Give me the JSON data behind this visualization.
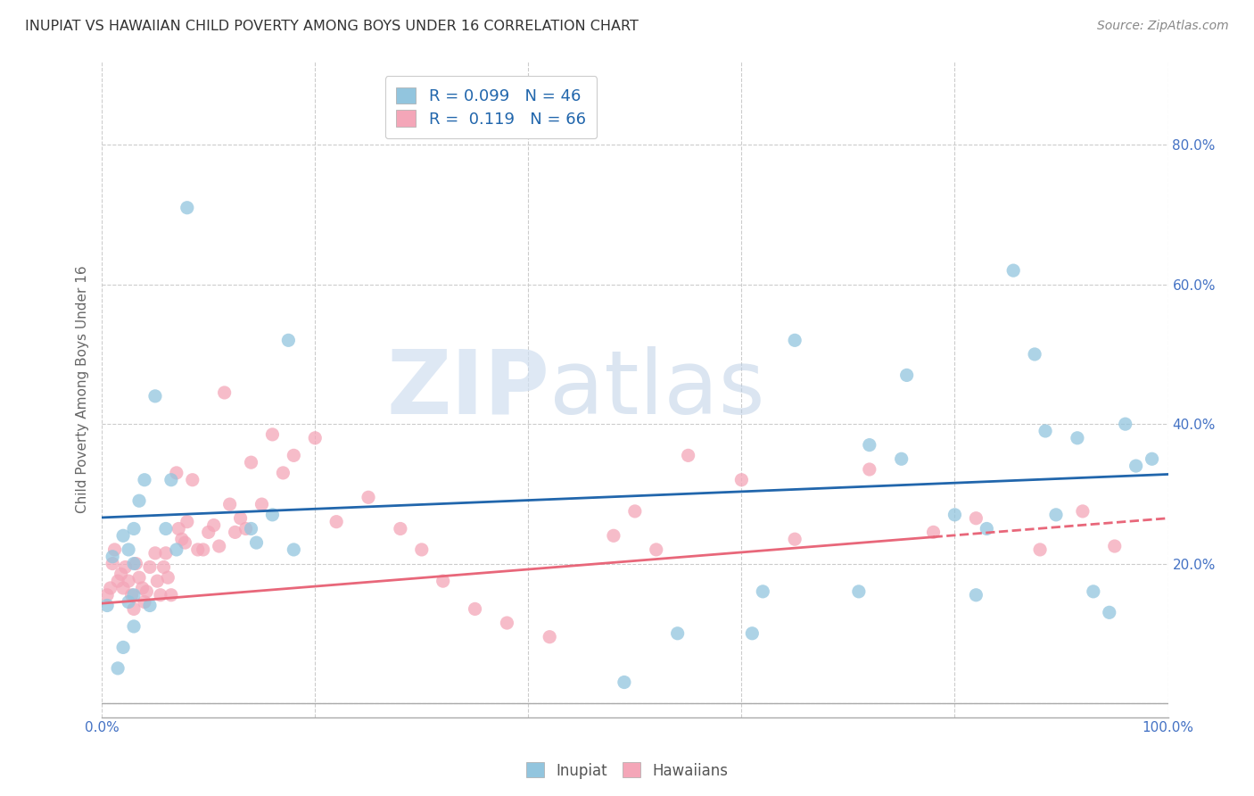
{
  "title": "INUPIAT VS HAWAIIAN CHILD POVERTY AMONG BOYS UNDER 16 CORRELATION CHART",
  "source": "Source: ZipAtlas.com",
  "xlabel": "",
  "ylabel": "Child Poverty Among Boys Under 16",
  "watermark_zip": "ZIP",
  "watermark_atlas": "atlas",
  "legend_inupiat": "R = 0.099   N = 46",
  "legend_hawaiians": "R =  0.119   N = 66",
  "inupiat_color": "#92c5de",
  "hawaiians_color": "#f4a6b8",
  "trendline_inupiat_color": "#2166ac",
  "trendline_hawaiians_color": "#e8677a",
  "background_color": "#ffffff",
  "grid_color": "#cccccc",
  "xlim": [
    0,
    1.0
  ],
  "ylim": [
    -0.02,
    0.92
  ],
  "xticks": [
    0,
    0.2,
    0.4,
    0.6,
    0.8,
    1.0
  ],
  "yticks": [
    0.0,
    0.2,
    0.4,
    0.6,
    0.8
  ],
  "xticklabels": [
    "0.0%",
    "",
    "",
    "",
    "",
    "100.0%"
  ],
  "yticklabels": [
    "",
    "20.0%",
    "40.0%",
    "60.0%",
    "80.0%"
  ],
  "inupiat_x": [
    0.005,
    0.01,
    0.015,
    0.02,
    0.02,
    0.025,
    0.025,
    0.03,
    0.03,
    0.03,
    0.03,
    0.035,
    0.04,
    0.045,
    0.05,
    0.06,
    0.065,
    0.07,
    0.08,
    0.14,
    0.145,
    0.16,
    0.175,
    0.18,
    0.49,
    0.54,
    0.61,
    0.62,
    0.65,
    0.71,
    0.72,
    0.75,
    0.755,
    0.8,
    0.82,
    0.83,
    0.855,
    0.875,
    0.885,
    0.895,
    0.915,
    0.93,
    0.945,
    0.96,
    0.97,
    0.985
  ],
  "inupiat_y": [
    0.14,
    0.21,
    0.05,
    0.24,
    0.08,
    0.145,
    0.22,
    0.2,
    0.155,
    0.25,
    0.11,
    0.29,
    0.32,
    0.14,
    0.44,
    0.25,
    0.32,
    0.22,
    0.71,
    0.25,
    0.23,
    0.27,
    0.52,
    0.22,
    0.03,
    0.1,
    0.1,
    0.16,
    0.52,
    0.16,
    0.37,
    0.35,
    0.47,
    0.27,
    0.155,
    0.25,
    0.62,
    0.5,
    0.39,
    0.27,
    0.38,
    0.16,
    0.13,
    0.4,
    0.34,
    0.35
  ],
  "hawaiians_x": [
    0.005,
    0.008,
    0.01,
    0.012,
    0.015,
    0.018,
    0.02,
    0.022,
    0.025,
    0.028,
    0.03,
    0.032,
    0.035,
    0.038,
    0.04,
    0.042,
    0.045,
    0.05,
    0.052,
    0.055,
    0.058,
    0.06,
    0.062,
    0.065,
    0.07,
    0.072,
    0.075,
    0.078,
    0.08,
    0.085,
    0.09,
    0.095,
    0.1,
    0.105,
    0.11,
    0.115,
    0.12,
    0.125,
    0.13,
    0.135,
    0.14,
    0.15,
    0.16,
    0.17,
    0.18,
    0.2,
    0.22,
    0.25,
    0.28,
    0.3,
    0.32,
    0.35,
    0.38,
    0.42,
    0.48,
    0.5,
    0.52,
    0.55,
    0.6,
    0.65,
    0.72,
    0.78,
    0.82,
    0.88,
    0.92,
    0.95
  ],
  "hawaiians_y": [
    0.155,
    0.165,
    0.2,
    0.22,
    0.175,
    0.185,
    0.165,
    0.195,
    0.175,
    0.155,
    0.135,
    0.2,
    0.18,
    0.165,
    0.145,
    0.16,
    0.195,
    0.215,
    0.175,
    0.155,
    0.195,
    0.215,
    0.18,
    0.155,
    0.33,
    0.25,
    0.235,
    0.23,
    0.26,
    0.32,
    0.22,
    0.22,
    0.245,
    0.255,
    0.225,
    0.445,
    0.285,
    0.245,
    0.265,
    0.25,
    0.345,
    0.285,
    0.385,
    0.33,
    0.355,
    0.38,
    0.26,
    0.295,
    0.25,
    0.22,
    0.175,
    0.135,
    0.115,
    0.095,
    0.24,
    0.275,
    0.22,
    0.355,
    0.32,
    0.235,
    0.335,
    0.245,
    0.265,
    0.22,
    0.275,
    0.225
  ],
  "inupiat_trend_x0": 0.0,
  "inupiat_trend_x1": 1.0,
  "inupiat_trend_y0": 0.266,
  "inupiat_trend_y1": 0.328,
  "hawaiians_trend_x0": 0.0,
  "hawaiians_trend_x1": 1.0,
  "hawaiians_trend_y0": 0.143,
  "hawaiians_trend_y1": 0.265,
  "hawaiians_trend_dash_start": 0.78
}
